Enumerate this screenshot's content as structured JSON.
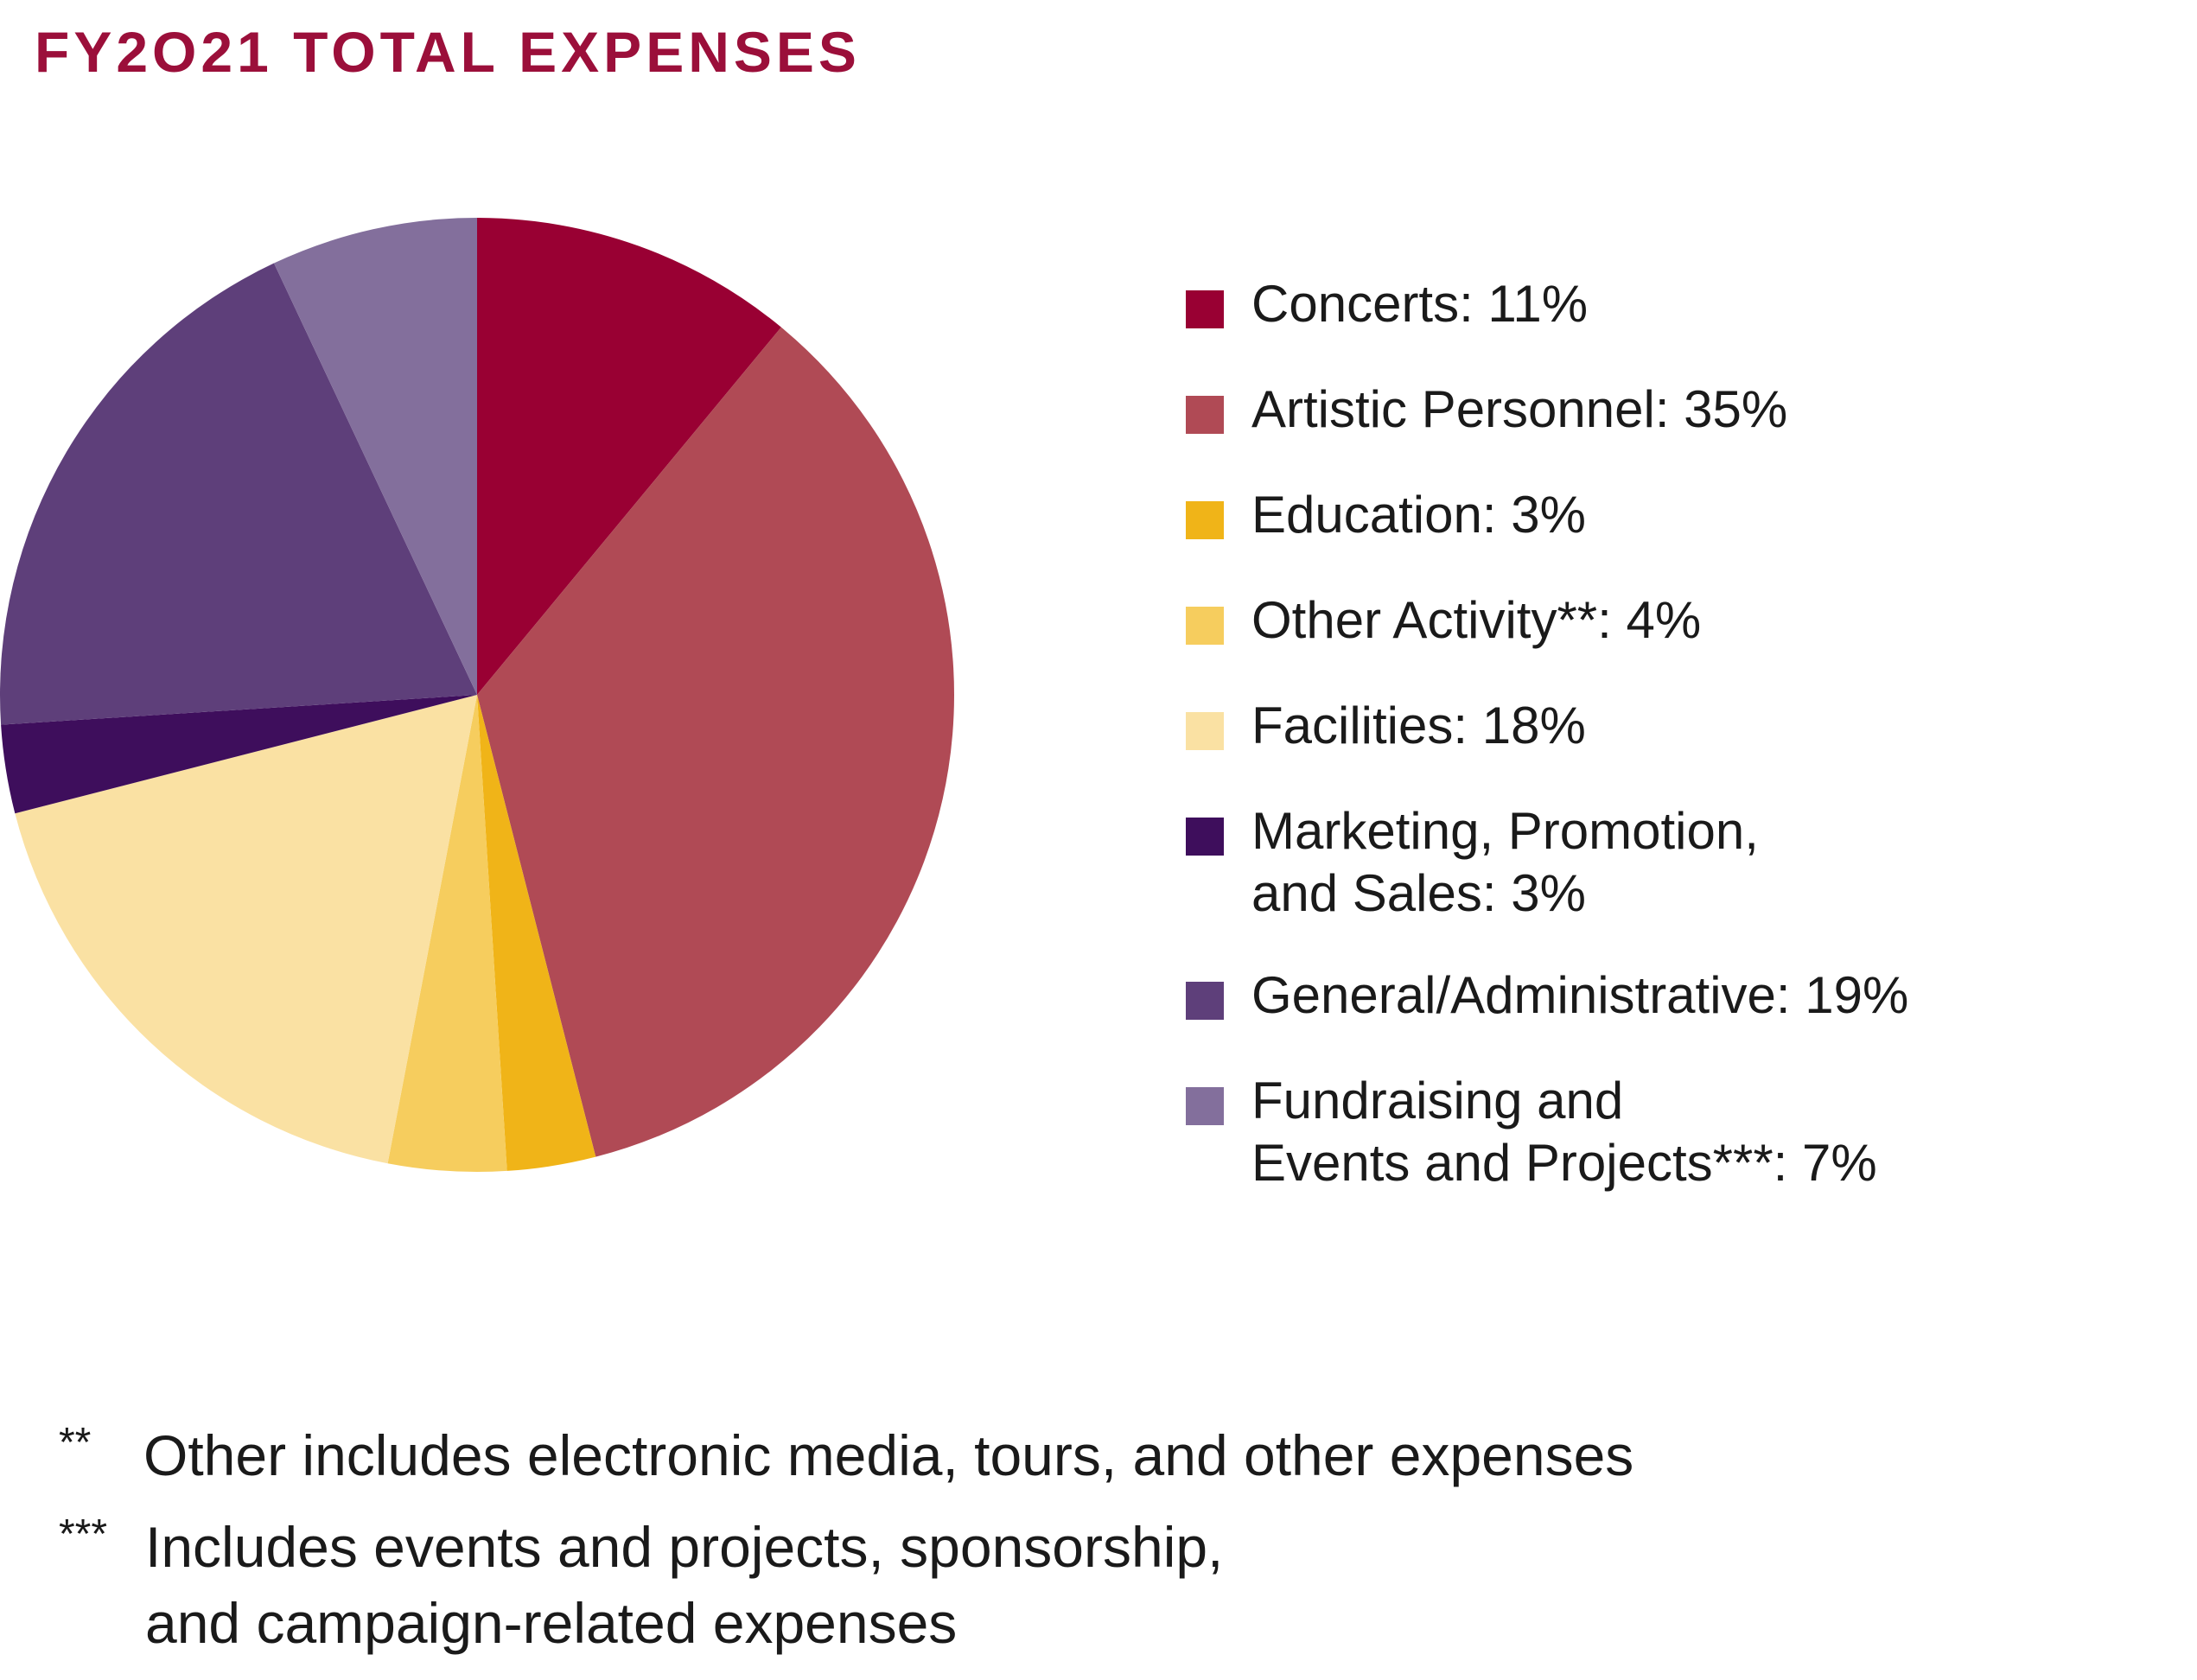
{
  "title": "FY2O21  TOTAL EXPENSES",
  "chart_data": {
    "type": "pie",
    "title": "FY2O21  TOTAL EXPENSES",
    "start_angle_deg": 0,
    "direction": "clockwise",
    "slices": [
      {
        "label": "Concerts: 11%",
        "value": 11,
        "color": "#990033"
      },
      {
        "label": "Artistic Personnel: 35%",
        "value": 35,
        "color": "#b04a55"
      },
      {
        "label": "Education: 3%",
        "value": 3,
        "color": "#f0b418"
      },
      {
        "label": "Other Activity**: 4%",
        "value": 4,
        "color": "#f6cd5e"
      },
      {
        "label": "Facilities: 18%",
        "value": 18,
        "color": "#fae1a3"
      },
      {
        "label": "Marketing, Promotion,\nand Sales: 3%",
        "value": 3,
        "color": "#3e0e5c"
      },
      {
        "label": "General/Administrative: 19%",
        "value": 19,
        "color": "#5e3f7a"
      },
      {
        "label": "Fundraising and\nEvents and Projects***: 7%",
        "value": 7,
        "color": "#836f9c"
      }
    ],
    "legend_position": "right"
  },
  "footnotes": [
    {
      "mark": "**",
      "text": "Other includes electronic media, tours, and other expenses"
    },
    {
      "mark": "***",
      "text": "Includes events and projects, sponsorship,\nand campaign-related expenses"
    }
  ]
}
